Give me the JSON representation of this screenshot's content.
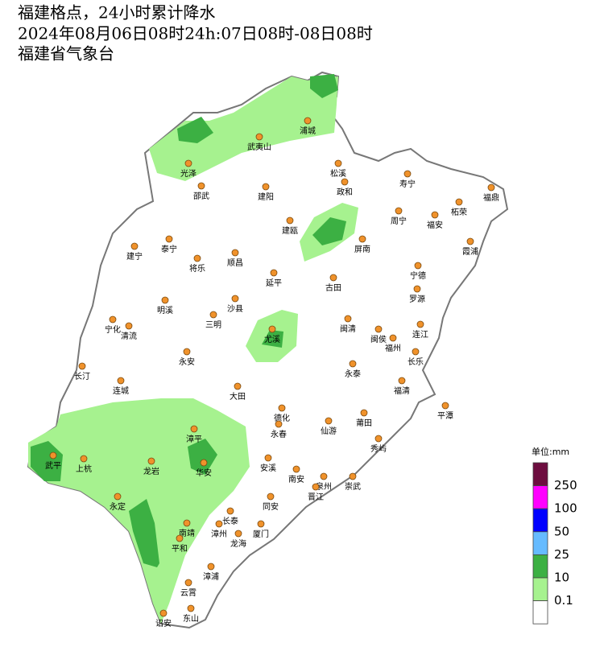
{
  "header": {
    "lines": [
      "福建格点，24小时累计降水",
      "2024年08月06日08时24h:07日08时-08日08时",
      "福建省气象台"
    ]
  },
  "cities": [
    "浦城",
    "武夷山",
    "光泽",
    "松溪",
    "政和",
    "寿宁",
    "福鼎",
    "邵武",
    "建阳",
    "柘荣",
    "周宁",
    "福安",
    "建瓯",
    "霞浦",
    "泰宁",
    "屏南",
    "建宁",
    "顺昌",
    "将乐",
    "宁德",
    "延平",
    "古田",
    "罗源",
    "明溪",
    "沙县",
    "三明",
    "宁化",
    "清流",
    "闽清",
    "连江",
    "尤溪",
    "闽侯",
    "福州",
    "永安",
    "长乐",
    "长汀",
    "永泰",
    "连城",
    "福清",
    "大田",
    "平潭",
    "德化",
    "莆田",
    "仙游",
    "永春",
    "秀屿",
    "漳平",
    "武平",
    "上杭",
    "龙岩",
    "华安",
    "安溪",
    "南安",
    "泉州",
    "崇武",
    "晋江",
    "永定",
    "同安",
    "长泰",
    "南靖",
    "漳州",
    "厦门",
    "龙海",
    "平和",
    "漳浦",
    "云霄",
    "诏安",
    "东山"
  ],
  "legend": {
    "unit": "单位:mm",
    "labels": [
      "250",
      "100",
      "50",
      "25",
      "10",
      "0.1"
    ]
  }
}
